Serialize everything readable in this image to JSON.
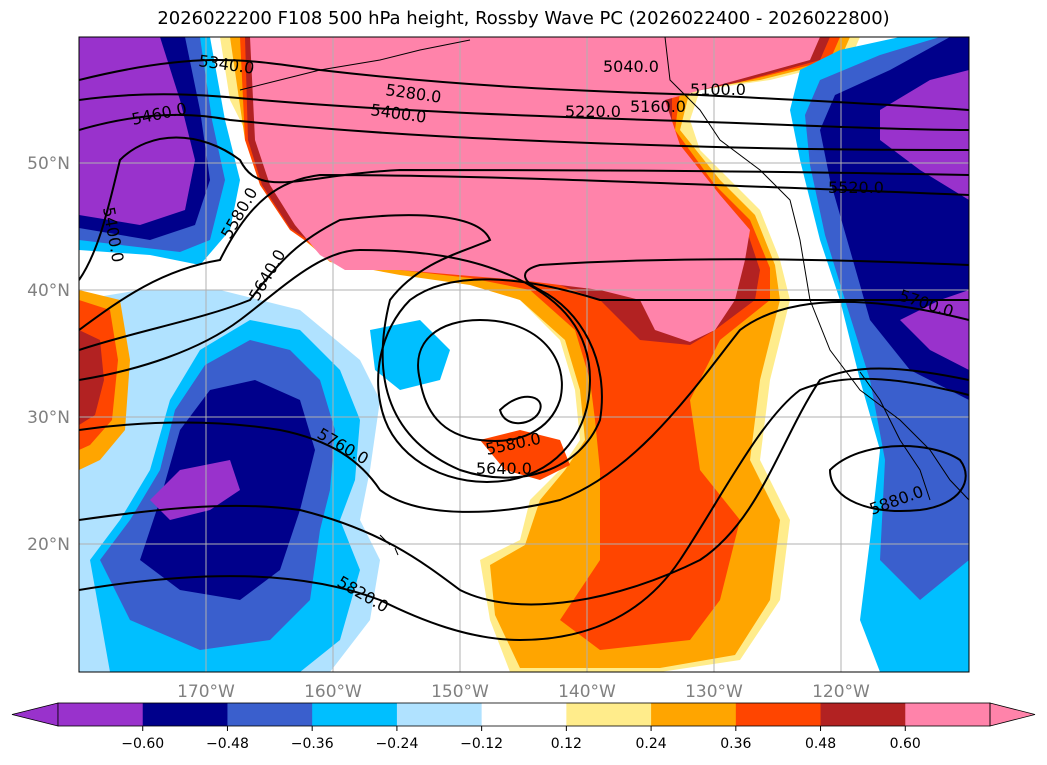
{
  "title": "2026022200 F108 500 hPa height, Rossby Wave PC (2026022400 - 2026022800)",
  "lat_labels": [
    "50°N",
    "40°N",
    "30°N",
    "20°N"
  ],
  "lon_labels": [
    "170°W",
    "160°W",
    "150°W",
    "140°W",
    "130°W",
    "120°W"
  ],
  "contour_labels": [
    "5340.0",
    "5280.0",
    "5040.0",
    "5100.0",
    "5460.0",
    "5400.0",
    "5220.0",
    "5160.0",
    "5400.0",
    "5520.0",
    "5580.0",
    "5640.0",
    "5700.0",
    "5760.0",
    "5580.0",
    "5640.0",
    "5820.0",
    "5880.0"
  ],
  "colorbar": {
    "colors": [
      "#9932cc",
      "#00008b",
      "#3a5fcd",
      "#00bfff",
      "#b0e2ff",
      "#ffffff",
      "#ffec8b",
      "#ffa500",
      "#ff4500",
      "#b22222",
      "#ff83aa",
      "#ff83aa"
    ],
    "ticks": [
      "−0.60",
      "−0.48",
      "−0.36",
      "−0.24",
      "−0.12",
      "0.12",
      "0.24",
      "0.36",
      "0.48",
      "0.60"
    ]
  }
}
